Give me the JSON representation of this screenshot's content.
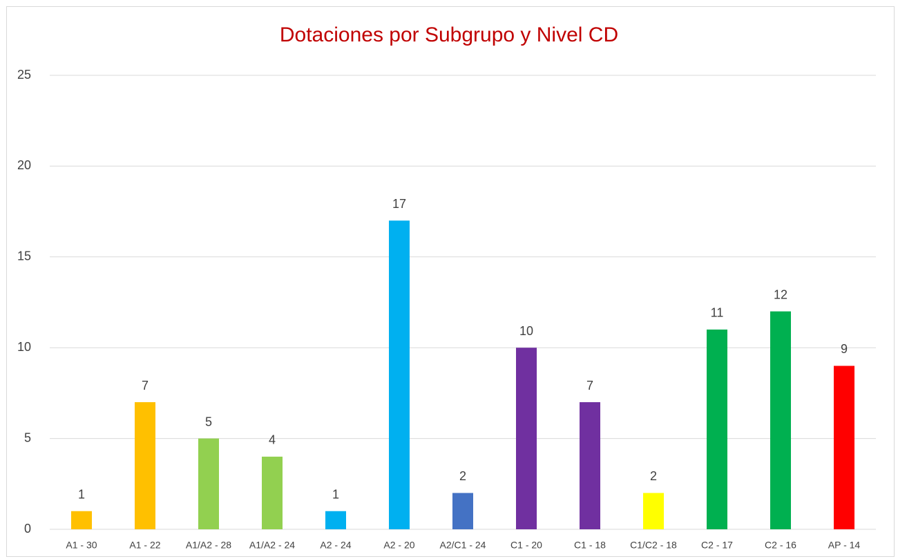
{
  "chart_data": {
    "type": "bar",
    "title": "Dotaciones por Subgrupo y Nivel CD",
    "categories": [
      "A1 - 30",
      "A1 - 22",
      "A1/A2 - 28",
      "A1/A2 - 24",
      "A2 - 24",
      "A2 - 20",
      "A2/C1 - 24",
      "C1 - 20",
      "C1 - 18",
      "C1/C2 - 18",
      "C2 - 17",
      "C2 - 16",
      "AP - 14"
    ],
    "values": [
      1,
      7,
      5,
      4,
      1,
      17,
      2,
      10,
      7,
      2,
      11,
      12,
      9
    ],
    "colors": [
      "#ffc000",
      "#ffc000",
      "#92d050",
      "#92d050",
      "#00b0f0",
      "#00b0f0",
      "#4472c4",
      "#7030a0",
      "#7030a0",
      "#ffff00",
      "#00b050",
      "#00b050",
      "#ff0000"
    ],
    "ylim": [
      0,
      25
    ],
    "yticks": [
      0,
      5,
      10,
      15,
      20,
      25
    ],
    "grid": true,
    "data_labels": true
  }
}
